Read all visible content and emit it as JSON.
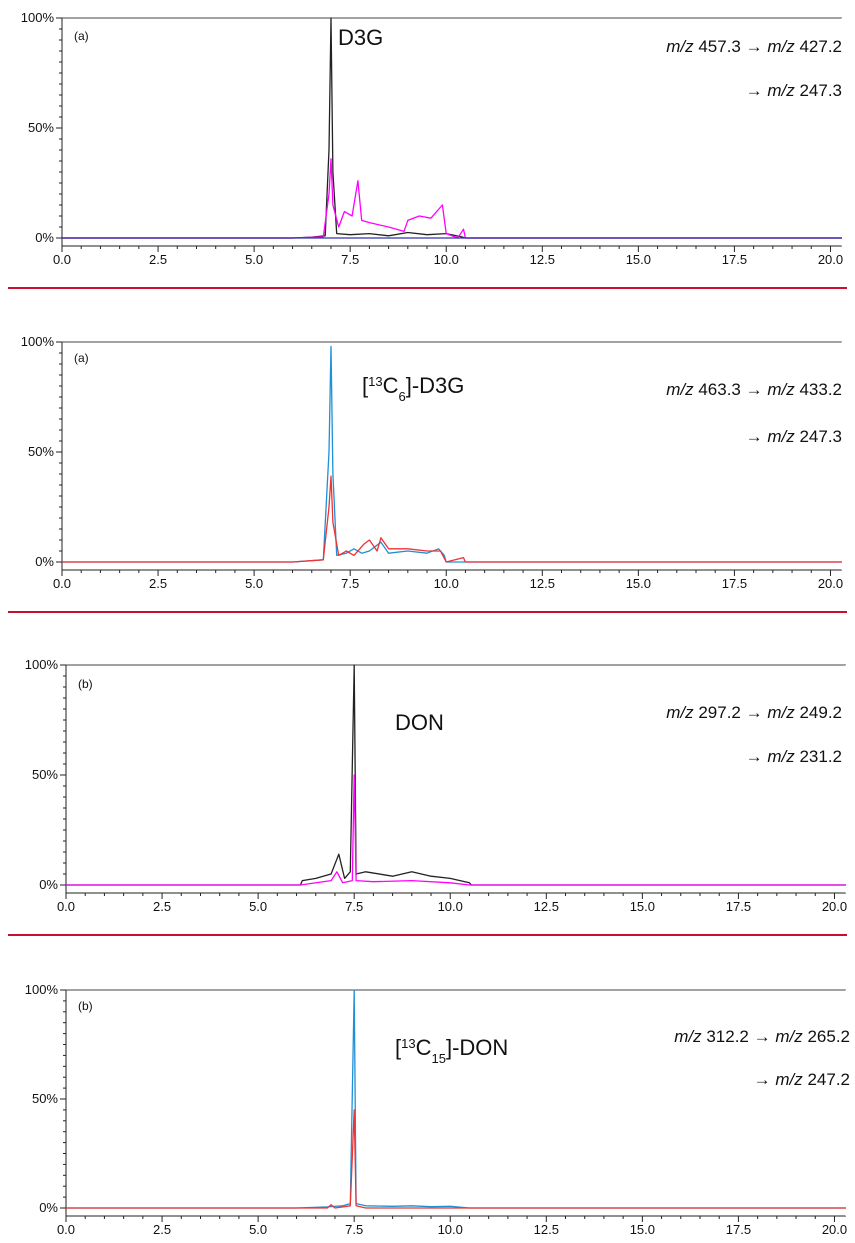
{
  "chart_data": [
    {
      "type": "line",
      "panel_tag": "(a)",
      "compound": "D3G",
      "compound_parts": [],
      "transition": [
        {
          "text": "m/z 457.3 → m/z 427.2",
          "runs": [
            {
              "t": "m/z",
              "i": true
            },
            {
              "t": " 457.3 → ",
              "i": false
            },
            {
              "t": "m/z",
              "i": true
            },
            {
              "t": " 427.2",
              "i": false
            }
          ]
        },
        {
          "text": "→ m/z 247.3",
          "runs": [
            {
              "t": "→ ",
              "i": false
            },
            {
              "t": "m/z",
              "i": true
            },
            {
              "t": " 247.3",
              "i": false
            }
          ]
        }
      ],
      "xlim": [
        0,
        20.3
      ],
      "ylim": [
        0,
        100
      ],
      "x_ticks": [
        "0.0",
        "2.5",
        "5.0",
        "7.5",
        "10.0",
        "12.5",
        "15.0",
        "17.5",
        "20.0"
      ],
      "y_ticks": [
        "0%",
        "50%",
        "100%"
      ],
      "grid": false,
      "series": [
        {
          "color": "#222222",
          "points": [
            [
              0,
              0
            ],
            [
              6.0,
              0
            ],
            [
              6.5,
              0.4
            ],
            [
              6.85,
              1
            ],
            [
              6.95,
              40
            ],
            [
              7.0,
              100
            ],
            [
              7.05,
              30
            ],
            [
              7.15,
              2
            ],
            [
              7.5,
              1.5
            ],
            [
              8.0,
              2
            ],
            [
              8.5,
              1
            ],
            [
              9.0,
              2.5
            ],
            [
              9.5,
              1.5
            ],
            [
              10.0,
              2
            ],
            [
              10.4,
              0.5
            ],
            [
              10.5,
              0
            ],
            [
              20.3,
              0
            ]
          ]
        },
        {
          "color": "#ff00ff",
          "points": [
            [
              0,
              0
            ],
            [
              6.0,
              0
            ],
            [
              6.8,
              0.5
            ],
            [
              6.95,
              20
            ],
            [
              7.0,
              36
            ],
            [
              7.05,
              15
            ],
            [
              7.2,
              5
            ],
            [
              7.35,
              12
            ],
            [
              7.55,
              10
            ],
            [
              7.7,
              26
            ],
            [
              7.8,
              8
            ],
            [
              8.0,
              7
            ],
            [
              8.5,
              5
            ],
            [
              8.9,
              3
            ],
            [
              9.0,
              8
            ],
            [
              9.3,
              10
            ],
            [
              9.6,
              9
            ],
            [
              9.9,
              15
            ],
            [
              10.0,
              2
            ],
            [
              10.3,
              0
            ],
            [
              10.45,
              4
            ],
            [
              10.5,
              0
            ],
            [
              20.3,
              0
            ]
          ]
        },
        {
          "color": "#3333aa",
          "points": [
            [
              0,
              0
            ],
            [
              20.3,
              0
            ]
          ]
        }
      ]
    },
    {
      "type": "line",
      "panel_tag": "(a)",
      "compound": "",
      "compound_parts": [
        {
          "t": "[",
          "sup": false
        },
        {
          "t": "13",
          "sup": true
        },
        {
          "t": "C",
          "sup": false
        },
        {
          "t": "6",
          "sub": true
        },
        {
          "t": "]-D3G",
          "sup": false
        }
      ],
      "compound_text": "[13C6]-D3G",
      "transition": [
        {
          "text": "m/z 463.3 → m/z 433.2",
          "runs": [
            {
              "t": "m/z",
              "i": true
            },
            {
              "t": " 463.3 → ",
              "i": false
            },
            {
              "t": "m/z",
              "i": true
            },
            {
              "t": " 433.2",
              "i": false
            }
          ]
        },
        {
          "text": "→ m/z 247.3",
          "runs": [
            {
              "t": "→ ",
              "i": false
            },
            {
              "t": "m/z",
              "i": true
            },
            {
              "t": " 247.3",
              "i": false
            }
          ]
        }
      ],
      "xlim": [
        0,
        20.3
      ],
      "ylim": [
        0,
        100
      ],
      "x_ticks": [
        "0.0",
        "2.5",
        "5.0",
        "7.5",
        "10.0",
        "12.5",
        "15.0",
        "17.5",
        "20.0"
      ],
      "y_ticks": [
        "0%",
        "50%",
        "100%"
      ],
      "grid": false,
      "series": [
        {
          "color": "#1e90d6",
          "points": [
            [
              0,
              0
            ],
            [
              6.0,
              0
            ],
            [
              6.8,
              1
            ],
            [
              6.95,
              50
            ],
            [
              7.0,
              98
            ],
            [
              7.05,
              40
            ],
            [
              7.15,
              3
            ],
            [
              7.4,
              4
            ],
            [
              7.6,
              6
            ],
            [
              7.8,
              4
            ],
            [
              8.0,
              5
            ],
            [
              8.3,
              9
            ],
            [
              8.5,
              4
            ],
            [
              9.0,
              5
            ],
            [
              9.5,
              4
            ],
            [
              9.8,
              6
            ],
            [
              9.95,
              3
            ],
            [
              10.0,
              0
            ],
            [
              20.3,
              0
            ]
          ]
        },
        {
          "color": "#ee3333",
          "points": [
            [
              0,
              0
            ],
            [
              6.0,
              0
            ],
            [
              6.8,
              1
            ],
            [
              6.95,
              25
            ],
            [
              7.0,
              39
            ],
            [
              7.05,
              18
            ],
            [
              7.2,
              3
            ],
            [
              7.4,
              5
            ],
            [
              7.6,
              3
            ],
            [
              7.85,
              8
            ],
            [
              8.0,
              10
            ],
            [
              8.2,
              5
            ],
            [
              8.3,
              11
            ],
            [
              8.5,
              6
            ],
            [
              9.0,
              6
            ],
            [
              9.5,
              5
            ],
            [
              9.85,
              5
            ],
            [
              10.0,
              0
            ],
            [
              10.45,
              2
            ],
            [
              10.5,
              0
            ],
            [
              20.3,
              0
            ]
          ]
        }
      ]
    },
    {
      "type": "line",
      "panel_tag": "(b)",
      "compound": "DON",
      "compound_parts": [],
      "transition": [
        {
          "text": "m/z 297.2 → m/z 249.2",
          "runs": [
            {
              "t": "m/z",
              "i": true
            },
            {
              "t": " 297.2 → ",
              "i": false
            },
            {
              "t": "m/z",
              "i": true
            },
            {
              "t": " 249.2",
              "i": false
            }
          ]
        },
        {
          "text": "→ m/z 231.2",
          "runs": [
            {
              "t": "→ ",
              "i": false
            },
            {
              "t": "m/z",
              "i": true
            },
            {
              "t": " 231.2",
              "i": false
            }
          ]
        }
      ],
      "xlim": [
        0,
        20.3
      ],
      "ylim": [
        0,
        100
      ],
      "x_ticks": [
        "0.0",
        "2.5",
        "5.0",
        "7.5",
        "10.0",
        "12.5",
        "15.0",
        "17.5",
        "20.0"
      ],
      "y_ticks": [
        "0%",
        "50%",
        "100%"
      ],
      "grid": false,
      "series": [
        {
          "color": "#222222",
          "points": [
            [
              0,
              0
            ],
            [
              6.1,
              0
            ],
            [
              6.15,
              2
            ],
            [
              6.5,
              3
            ],
            [
              6.9,
              5
            ],
            [
              7.1,
              14
            ],
            [
              7.25,
              3
            ],
            [
              7.4,
              6
            ],
            [
              7.5,
              100
            ],
            [
              7.55,
              5
            ],
            [
              7.8,
              6
            ],
            [
              8.5,
              4
            ],
            [
              9.0,
              6
            ],
            [
              9.5,
              4
            ],
            [
              10.0,
              3
            ],
            [
              10.5,
              1
            ],
            [
              10.55,
              0
            ],
            [
              20.3,
              0
            ]
          ]
        },
        {
          "color": "#ff00ff",
          "points": [
            [
              0,
              0
            ],
            [
              6.1,
              0
            ],
            [
              6.9,
              2
            ],
            [
              7.05,
              6
            ],
            [
              7.2,
              1
            ],
            [
              7.45,
              2
            ],
            [
              7.5,
              50
            ],
            [
              7.55,
              2
            ],
            [
              8.0,
              1.5
            ],
            [
              9.0,
              2
            ],
            [
              10.0,
              1
            ],
            [
              10.5,
              0
            ],
            [
              20.3,
              0
            ]
          ]
        }
      ]
    },
    {
      "type": "line",
      "panel_tag": "(b)",
      "compound": "",
      "compound_parts": [
        {
          "t": "[",
          "sup": false
        },
        {
          "t": "13",
          "sup": true
        },
        {
          "t": "C",
          "sup": false
        },
        {
          "t": "15",
          "sub": true
        },
        {
          "t": "]-DON",
          "sup": false
        }
      ],
      "compound_text": "[13C15]-DON",
      "transition": [
        {
          "text": "m/z 312.2 → m/z 265.2",
          "runs": [
            {
              "t": "m/z",
              "i": true
            },
            {
              "t": " 312.2 → ",
              "i": false
            },
            {
              "t": "m/z",
              "i": true
            },
            {
              "t": " 265.2",
              "i": false
            }
          ]
        },
        {
          "text": "→ m/z 247.2",
          "runs": [
            {
              "t": "→ ",
              "i": false
            },
            {
              "t": "m/z",
              "i": true
            },
            {
              "t": " 247.2",
              "i": false
            }
          ]
        }
      ],
      "xlim": [
        0,
        20.3
      ],
      "ylim": [
        0,
        100
      ],
      "x_ticks": [
        "0.0",
        "2.5",
        "5.0",
        "7.5",
        "10.0",
        "12.5",
        "15.0",
        "17.5",
        "20.0"
      ],
      "y_ticks": [
        "0%",
        "50%",
        "100%"
      ],
      "grid": false,
      "series": [
        {
          "color": "#1e90d6",
          "points": [
            [
              0,
              0
            ],
            [
              6.0,
              0
            ],
            [
              6.8,
              0.5
            ],
            [
              7.2,
              1
            ],
            [
              7.4,
              2
            ],
            [
              7.5,
              100
            ],
            [
              7.55,
              2
            ],
            [
              7.8,
              1
            ],
            [
              8.5,
              0.8
            ],
            [
              9.0,
              1
            ],
            [
              9.5,
              0.6
            ],
            [
              10.0,
              0.8
            ],
            [
              10.5,
              0
            ],
            [
              20.3,
              0
            ]
          ]
        },
        {
          "color": "#ee3333",
          "points": [
            [
              0,
              0
            ],
            [
              6.8,
              0
            ],
            [
              6.9,
              1.5
            ],
            [
              7.0,
              0
            ],
            [
              7.4,
              1
            ],
            [
              7.5,
              45
            ],
            [
              7.55,
              1
            ],
            [
              7.8,
              0
            ],
            [
              20.3,
              0
            ]
          ]
        }
      ]
    }
  ],
  "colors": {
    "separator": "#c8102e",
    "axis": "#222222"
  }
}
